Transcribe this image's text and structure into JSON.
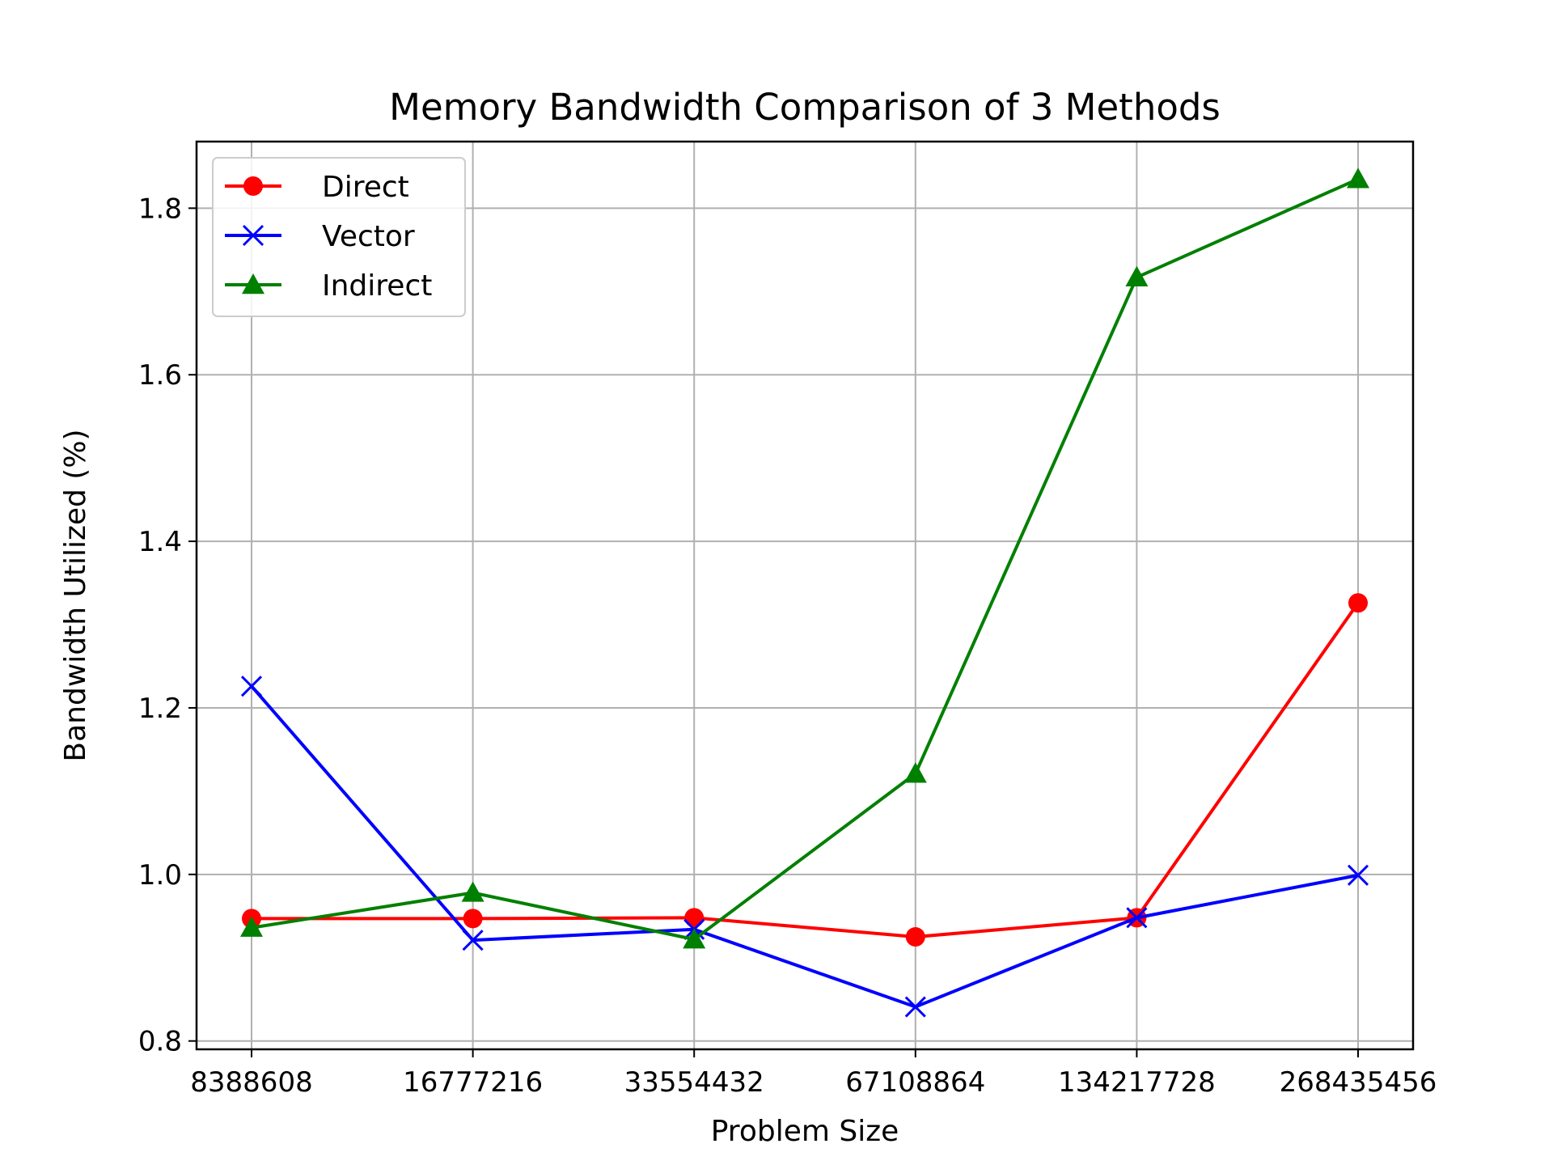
{
  "chart_data": {
    "type": "line",
    "title": "Memory Bandwidth Comparison of 3 Methods",
    "xlabel": "Problem Size",
    "ylabel": "Bandwidth Utilized (%)",
    "categories": [
      "8388608",
      "16777216",
      "33554432",
      "67108864",
      "134217728",
      "268435456"
    ],
    "ylim": [
      0.79,
      1.88
    ],
    "yticks": [
      "0.8",
      "1.0",
      "1.2",
      "1.4",
      "1.6",
      "1.8"
    ],
    "grid": true,
    "legend_position": "top-left",
    "series": [
      {
        "name": "Direct",
        "color": "#ff0000",
        "marker": "circle",
        "values": [
          0.947,
          0.947,
          0.948,
          0.925,
          0.948,
          1.326
        ]
      },
      {
        "name": "Vector",
        "color": "#0000ff",
        "marker": "x",
        "values": [
          1.226,
          0.921,
          0.934,
          0.841,
          0.948,
          0.999
        ]
      },
      {
        "name": "Indirect",
        "color": "#008000",
        "marker": "triangle",
        "values": [
          0.936,
          0.978,
          0.922,
          1.121,
          1.717,
          1.835
        ]
      }
    ]
  }
}
